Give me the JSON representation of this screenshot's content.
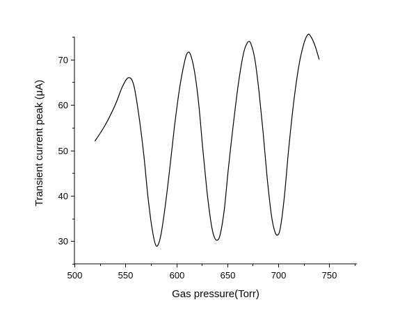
{
  "chart_data": {
    "type": "line",
    "title": "",
    "xlabel": "Gas pressure(Torr)",
    "ylabel": "Transient current peak (μA)",
    "xlim": [
      500,
      777
    ],
    "ylim": [
      25,
      75
    ],
    "grid": false,
    "legend": "none",
    "x_ticks": [
      500,
      550,
      600,
      650,
      700,
      750
    ],
    "x_tick_labels": [
      "500",
      "550",
      "600",
      "650",
      "700",
      "750"
    ],
    "y_ticks": [
      30,
      40,
      50,
      60,
      70
    ],
    "y_tick_labels": [
      "30",
      "40",
      "50",
      "60",
      "70"
    ],
    "series": [
      {
        "color": "#000000",
        "x": [
          520,
          530,
          540,
          547,
          553,
          558,
          563,
          568,
          572,
          576,
          580,
          584,
          588,
          593,
          598,
          603,
          608,
          611,
          614,
          618,
          622,
          626,
          630,
          634,
          637,
          640,
          643,
          647,
          651,
          656,
          661,
          666,
          670,
          673,
          677,
          681,
          685,
          689,
          693,
          696,
          699,
          702,
          706,
          710,
          715,
          720,
          725,
          729,
          732,
          736,
          740
        ],
        "y": [
          52,
          55.5,
          60,
          64,
          66,
          64.5,
          58,
          49,
          40,
          33,
          29,
          30.5,
          36,
          45,
          55,
          63.5,
          69.5,
          71.5,
          71,
          67,
          60,
          50,
          41,
          34,
          31,
          30.2,
          31.5,
          37,
          46,
          56,
          65,
          71.5,
          73.8,
          73.5,
          70,
          63,
          54,
          44,
          36,
          32.5,
          31.3,
          33,
          40,
          50,
          60.5,
          68.5,
          73.5,
          75.5,
          75,
          73,
          70
        ]
      }
    ]
  }
}
